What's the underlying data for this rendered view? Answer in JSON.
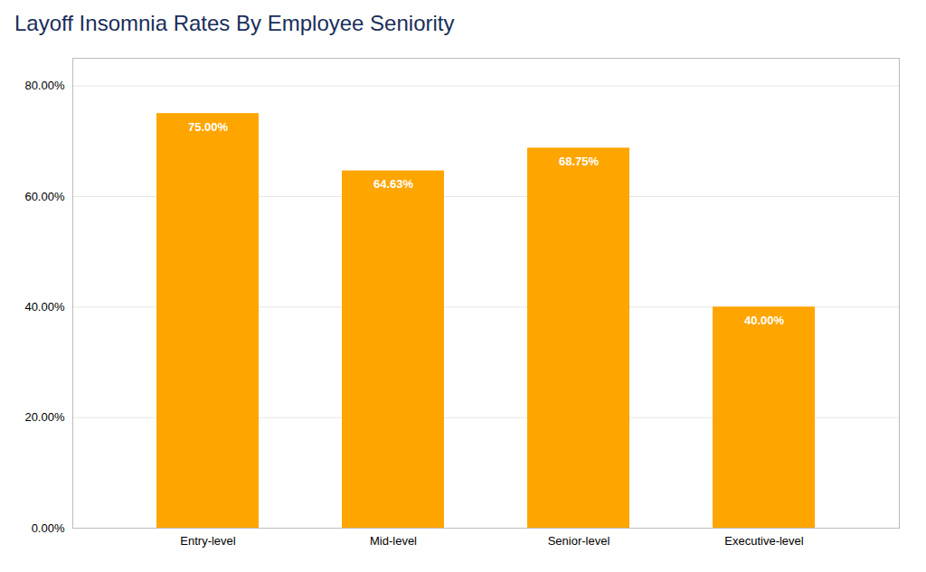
{
  "chart_data": {
    "type": "bar",
    "title": "Layoff Insomnia Rates By Employee Seniority",
    "categories": [
      "Entry-level",
      "Mid-level",
      "Senior-level",
      "Executive-level"
    ],
    "values": [
      75.0,
      64.63,
      68.75,
      40.0
    ],
    "value_labels": [
      "75.00%",
      "64.63%",
      "68.75%",
      "40.00%"
    ],
    "data_labels": true,
    "color": "#FFA500",
    "ylim": [
      0,
      85
    ],
    "yticks": [
      {
        "value": 0,
        "label": "0.00%"
      },
      {
        "value": 20,
        "label": "20.00%"
      },
      {
        "value": 40,
        "label": "40.00%"
      },
      {
        "value": 60,
        "label": "60.00%"
      },
      {
        "value": 80,
        "label": "80.00%"
      }
    ],
    "grid": true
  }
}
